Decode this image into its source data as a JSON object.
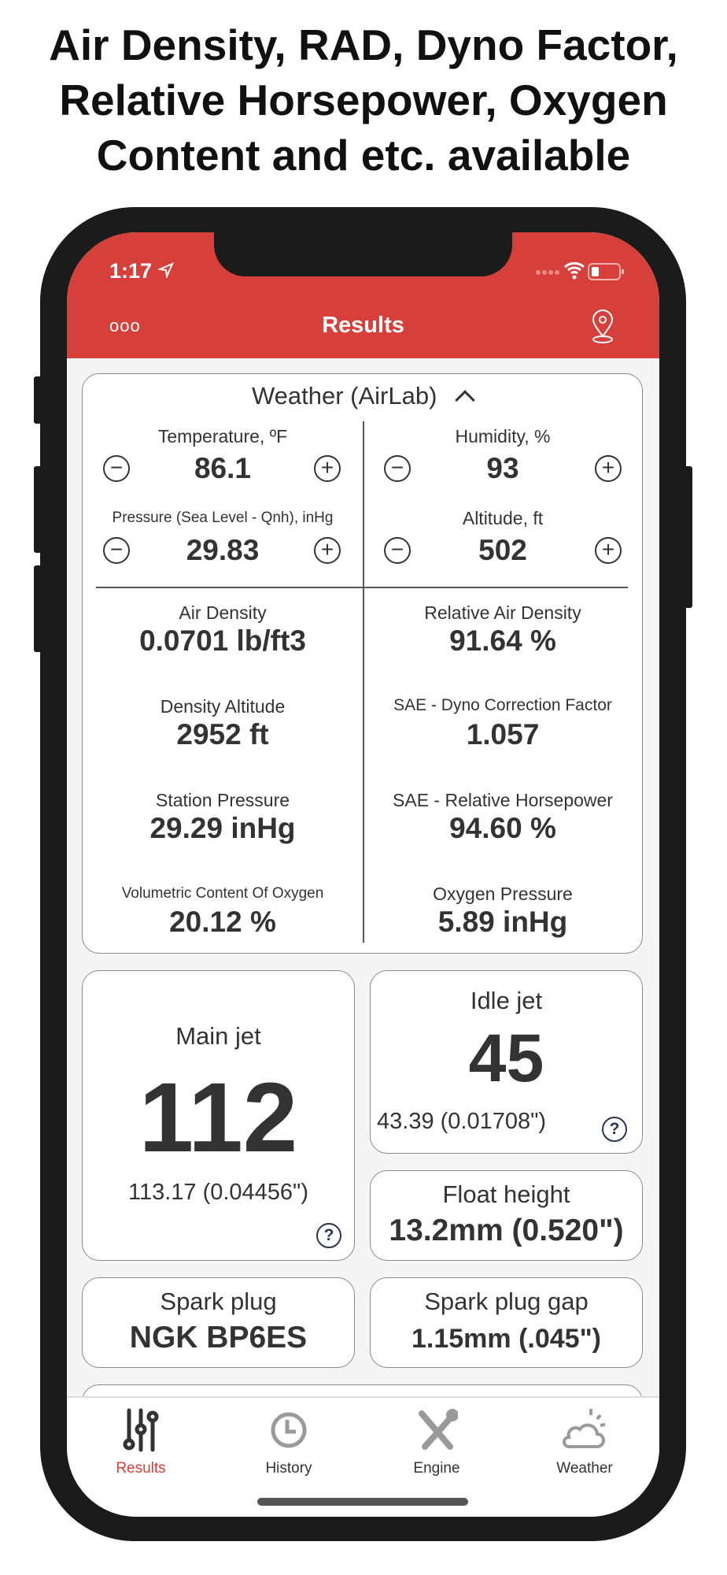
{
  "headline": [
    "Air Density, RAD, Dyno Factor,",
    "Relative Horsepower, Oxygen",
    "Content and etc. available"
  ],
  "status": {
    "time": "1:17"
  },
  "nav": {
    "title": "Results",
    "menu_label": "ooo"
  },
  "weather": {
    "title": "Weather (AirLab)",
    "inputs": [
      {
        "label": "Temperature, ºF",
        "value": "86.1"
      },
      {
        "label": "Humidity, %",
        "value": "93"
      },
      {
        "label": "Pressure (Sea Level - Qnh), inHg",
        "value": "29.83"
      },
      {
        "label": "Altitude, ft",
        "value": "502"
      }
    ],
    "results": [
      {
        "label": "Air Density",
        "value": "0.0701 lb/ft3"
      },
      {
        "label": "Relative Air Density",
        "value": "91.64 %"
      },
      {
        "label": "Density Altitude",
        "value": "2952 ft"
      },
      {
        "label": "SAE - Dyno Correction Factor",
        "value": "1.057"
      },
      {
        "label": "Station Pressure",
        "value": "29.29 inHg"
      },
      {
        "label": "SAE - Relative Horsepower",
        "value": "94.60 %"
      },
      {
        "label": "Volumetric Content Of Oxygen",
        "value": "20.12 %"
      },
      {
        "label": "Oxygen Pressure",
        "value": "5.89 inHg"
      }
    ]
  },
  "main_jet": {
    "label": "Main jet",
    "value": "112",
    "detail": "113.17 (0.04456\")"
  },
  "idle_jet": {
    "label": "Idle jet",
    "value": "45",
    "detail": "43.39 (0.01708\")"
  },
  "float_height": {
    "label": "Float height",
    "value": "13.2mm (0.520\")"
  },
  "spark_plug": {
    "label": "Spark plug",
    "value": "NGK BP6ES"
  },
  "spark_gap": {
    "label": "Spark plug gap",
    "value": "1.15mm (.045\")"
  },
  "tabs": [
    {
      "label": "Results",
      "active": true
    },
    {
      "label": "History"
    },
    {
      "label": "Engine"
    },
    {
      "label": "Weather"
    }
  ],
  "colors": {
    "accent": "#d7403a",
    "active_tab": "#e03a32"
  }
}
